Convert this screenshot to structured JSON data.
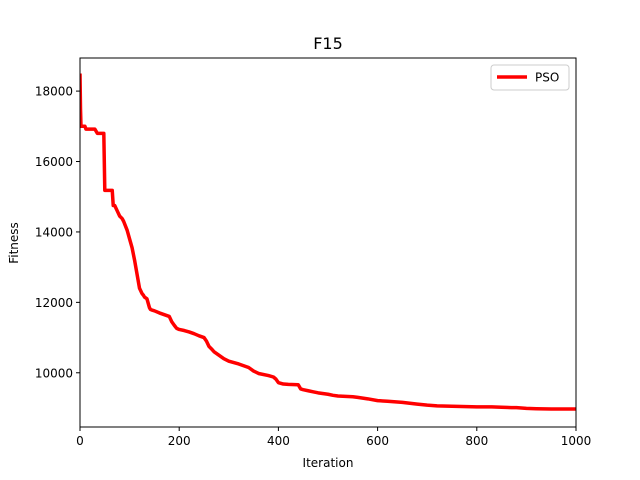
{
  "chart_data": {
    "type": "line",
    "title": "F15",
    "xlabel": "Iteration",
    "ylabel": "Fitness",
    "xlim": [
      0,
      1000
    ],
    "ylim": [
      8460,
      18940
    ],
    "xticks": [
      0,
      200,
      400,
      600,
      800,
      1000
    ],
    "yticks": [
      10000,
      12000,
      14000,
      16000,
      18000
    ],
    "grid": false,
    "legend": "top-right",
    "series": [
      {
        "name": "PSO",
        "color": "#ff0000",
        "x": [
          0,
          1,
          2,
          3,
          10,
          12,
          30,
          35,
          48,
          50,
          58,
          65,
          67,
          70,
          75,
          80,
          85,
          88,
          95,
          100,
          105,
          110,
          115,
          120,
          125,
          128,
          130,
          135,
          140,
          142,
          145,
          150,
          160,
          170,
          180,
          185,
          190,
          195,
          200,
          210,
          220,
          230,
          240,
          250,
          255,
          260,
          265,
          270,
          280,
          290,
          300,
          320,
          330,
          340,
          350,
          360,
          380,
          390,
          395,
          400,
          410,
          420,
          440,
          445,
          450,
          460,
          470,
          480,
          500,
          510,
          520,
          550,
          560,
          580,
          600,
          620,
          650,
          680,
          700,
          720,
          750,
          780,
          800,
          820,
          830,
          850,
          870,
          880,
          900,
          920,
          950,
          960,
          1000
        ],
        "y": [
          18500,
          17500,
          17000,
          17000,
          17000,
          16920,
          16920,
          16800,
          16800,
          15180,
          15180,
          15180,
          14750,
          14750,
          14600,
          14450,
          14380,
          14300,
          14050,
          13800,
          13550,
          13200,
          12800,
          12400,
          12250,
          12200,
          12150,
          12100,
          11850,
          11800,
          11780,
          11760,
          11700,
          11650,
          11600,
          11450,
          11350,
          11260,
          11230,
          11200,
          11160,
          11110,
          11050,
          11000,
          10900,
          10750,
          10680,
          10600,
          10500,
          10400,
          10330,
          10250,
          10200,
          10150,
          10050,
          9980,
          9920,
          9880,
          9820,
          9720,
          9680,
          9670,
          9660,
          9540,
          9520,
          9490,
          9460,
          9430,
          9390,
          9360,
          9340,
          9320,
          9300,
          9260,
          9210,
          9190,
          9160,
          9110,
          9080,
          9060,
          9050,
          9040,
          9030,
          9030,
          9030,
          9020,
          9010,
          9010,
          8990,
          8980,
          8970,
          8970,
          8970
        ]
      }
    ]
  }
}
